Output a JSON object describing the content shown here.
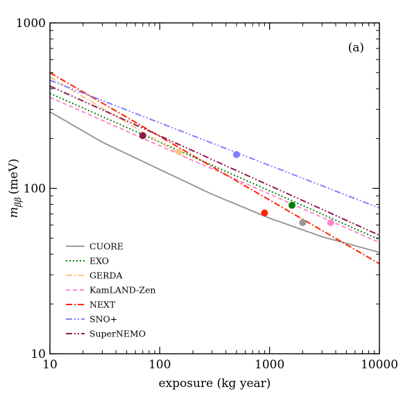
{
  "chart_data": {
    "type": "line",
    "xlabel": "exposure (kg year)",
    "ylabel_main": "m",
    "ylabel_sub": "ββ",
    "ylabel_unit": "(meV)",
    "annotation": "(a)",
    "xscale": "log",
    "yscale": "log",
    "xlim": [
      10,
      10000
    ],
    "ylim": [
      10,
      1000
    ],
    "x_ticks": [
      10,
      100,
      1000,
      10000
    ],
    "x_tick_labels": [
      "10",
      "100",
      "1000",
      "10000"
    ],
    "y_ticks": [
      10,
      100,
      1000
    ],
    "y_tick_labels": [
      "10",
      "100",
      "1000"
    ],
    "grid": false,
    "legend_position": "bottom-left",
    "series": [
      {
        "name": "CUORE",
        "color": "#999999",
        "dash": "solid",
        "x": [
          10,
          30,
          100,
          300,
          1000,
          3000,
          10000
        ],
        "y": [
          290,
          190,
          130,
          92,
          66,
          51,
          41
        ],
        "marker": {
          "x": 2000,
          "y": 62
        }
      },
      {
        "name": "EXO",
        "color": "#008000",
        "dash": "dotted",
        "x": [
          10,
          10000
        ],
        "y": [
          375,
          49
        ],
        "marker": {
          "x": 1600,
          "y": 79
        }
      },
      {
        "name": "GERDA",
        "color": "#ffc38a",
        "dash": "dashdot",
        "x": [
          10,
          200
        ],
        "y": [
          470,
          145
        ],
        "marker": {
          "x": 150,
          "y": 166
        }
      },
      {
        "name": "KamLAND-Zen",
        "color": "#ff88cc",
        "dash": "dashed",
        "x": [
          10,
          10000
        ],
        "y": [
          355,
          47
        ],
        "marker": {
          "x": 3600,
          "y": 62
        }
      },
      {
        "name": "NEXT",
        "color": "#ff2200",
        "dash": "dashdot",
        "x": [
          10,
          10000
        ],
        "y": [
          500,
          35
        ],
        "marker": {
          "x": 900,
          "y": 71
        }
      },
      {
        "name": "SNO+",
        "color": "#7f7fff",
        "dash": "dashdotdot",
        "x": [
          10,
          10000
        ],
        "y": [
          450,
          76
        ],
        "marker": {
          "x": 500,
          "y": 160
        }
      },
      {
        "name": "SuperNEMO",
        "color": "#8b1a4a",
        "dash": "dashdotdot",
        "x": [
          10,
          10000
        ],
        "y": [
          415,
          52
        ],
        "marker": {
          "x": 70,
          "y": 208
        }
      }
    ]
  }
}
